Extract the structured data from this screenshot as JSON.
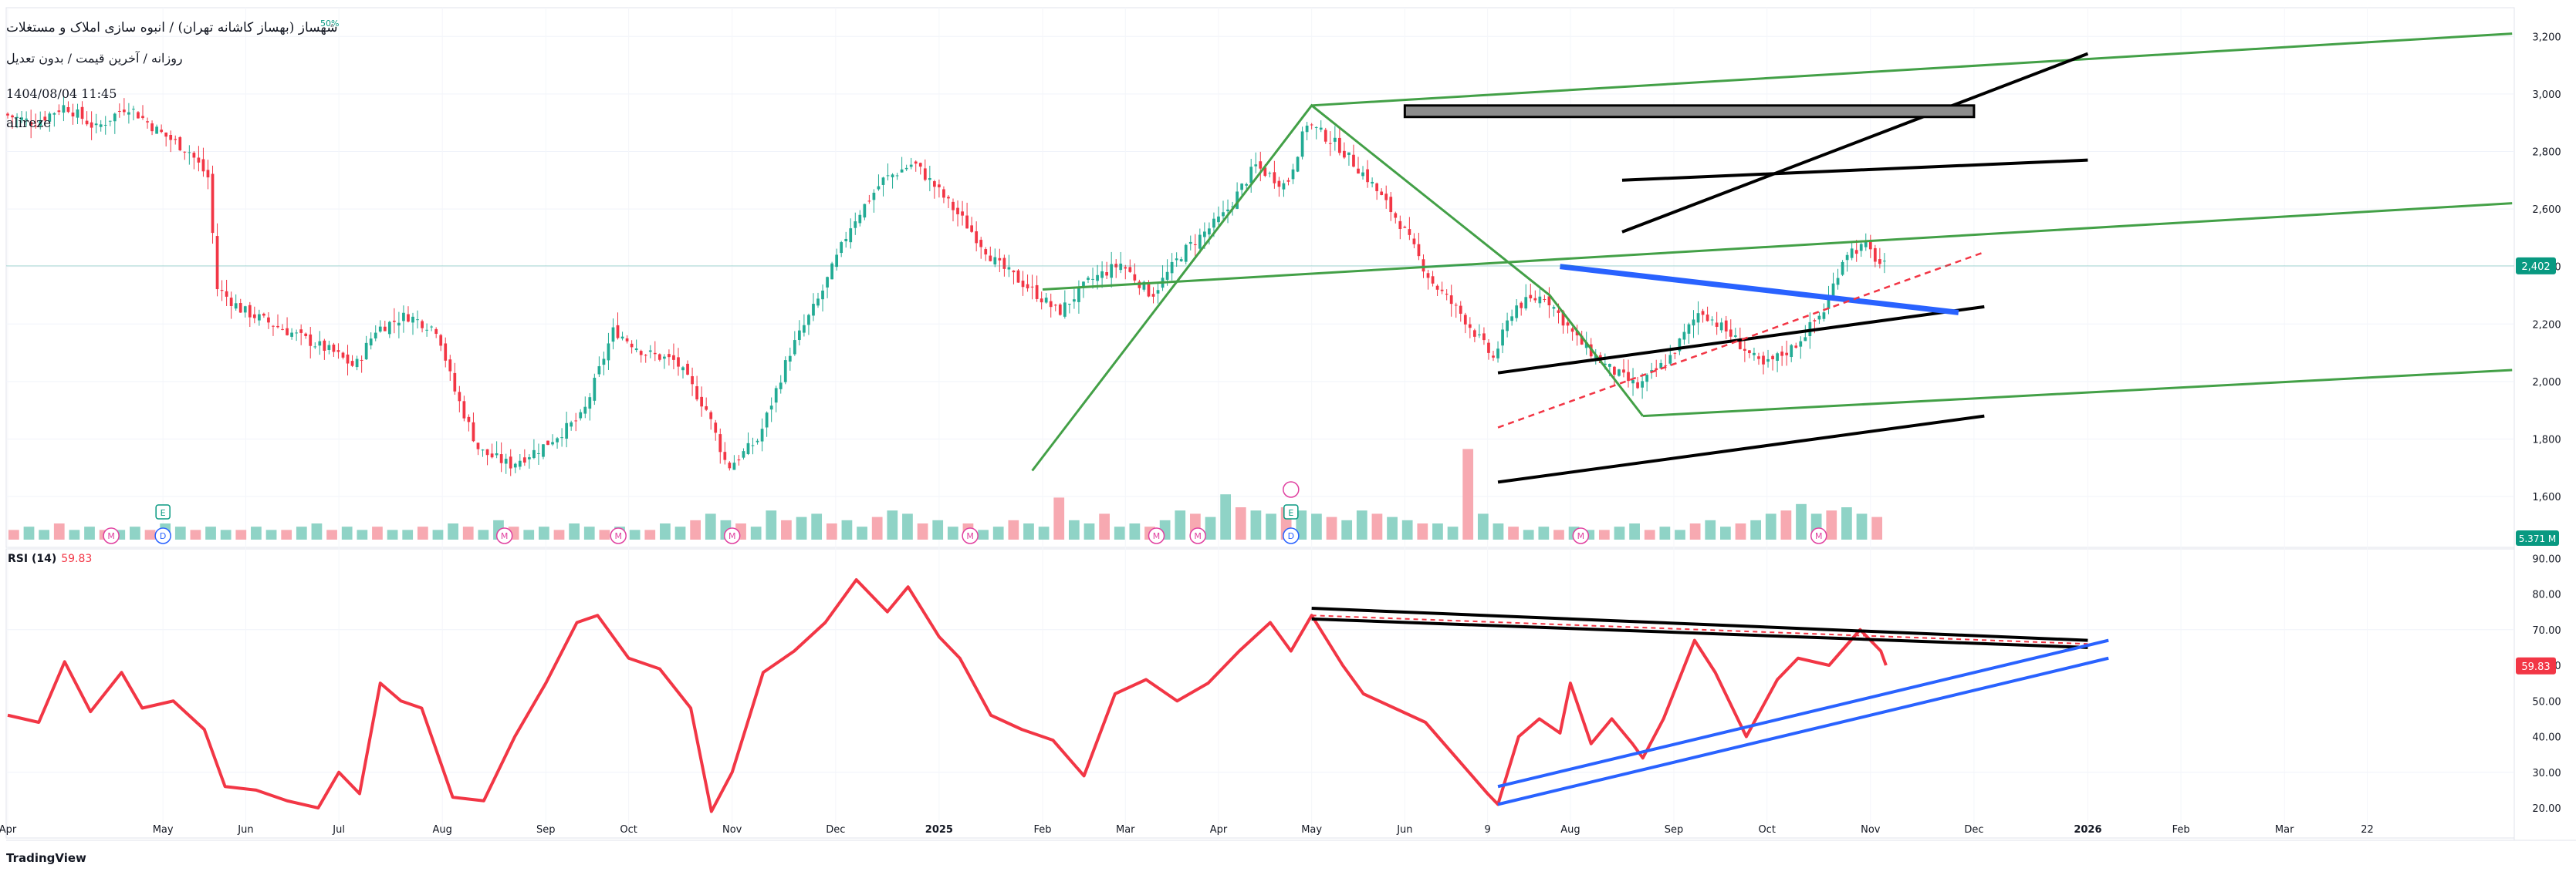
{
  "header": {
    "title": "شهساز (بهساز کاشانه تهران) / انبوه سازی املاک و مستغلات",
    "subtitle": "روزانه / آخرین قیمت / بدون تعدیل",
    "datetime": "1404/08/04 11:45",
    "author": "alireze",
    "percent_badge": "50%"
  },
  "footer": {
    "brand": "TradingView"
  },
  "colors": {
    "up": "#22ab94",
    "down": "#f23645",
    "green_line": "#43a047",
    "blue_line": "#2962ff",
    "rsi_line": "#f23645",
    "price_tag": "#089981"
  },
  "chart_data": [
    {
      "type": "candlestick",
      "title": "شهساز (بهساز کاشانه تهران) / انبوه سازی املاک و مستغلات",
      "y_axis_ticks": [
        1600,
        1800,
        2000,
        2200,
        2400,
        2600,
        2800,
        3000,
        3200
      ],
      "y_range": [
        1450,
        3300
      ],
      "last_price": "2,402",
      "volume_label": "5.371 M",
      "x_axis_labels": [
        "Apr",
        "May",
        "Jun",
        "Jul",
        "Aug",
        "Sep",
        "Oct",
        "Nov",
        "Dec",
        "2025",
        "Feb",
        "Mar",
        "Apr",
        "May",
        "Jun",
        "9",
        "Aug",
        "Sep",
        "Oct",
        "Nov",
        "Dec",
        "2026",
        "Feb",
        "Mar",
        "22"
      ],
      "x_axis_months": [
        0,
        1.5,
        2.3,
        3.2,
        4.2,
        5.2,
        6.0,
        7.0,
        8.0,
        9.0,
        10.0,
        10.8,
        11.7,
        12.6,
        13.5,
        14.3,
        15.1,
        16.1,
        17.0,
        18.0,
        19.0,
        20.1,
        21.0,
        22.0,
        22.8
      ],
      "price_path": [
        [
          0,
          2930
        ],
        [
          0.3,
          2900
        ],
        [
          0.6,
          2960
        ],
        [
          0.9,
          2880
        ],
        [
          1.2,
          2960
        ],
        [
          1.5,
          2870
        ],
        [
          1.8,
          2800
        ],
        [
          2.0,
          2700
        ],
        [
          2.05,
          2330
        ],
        [
          2.3,
          2250
        ],
        [
          2.6,
          2200
        ],
        [
          2.9,
          2150
        ],
        [
          3.2,
          2100
        ],
        [
          3.4,
          2050
        ],
        [
          3.6,
          2180
        ],
        [
          3.9,
          2230
        ],
        [
          4.2,
          2180
        ],
        [
          4.35,
          1980
        ],
        [
          4.6,
          1760
        ],
        [
          4.9,
          1710
        ],
        [
          5.2,
          1770
        ],
        [
          5.6,
          1880
        ],
        [
          5.9,
          2180
        ],
        [
          6.2,
          2100
        ],
        [
          6.5,
          2070
        ],
        [
          6.8,
          1900
        ],
        [
          7.0,
          1700
        ],
        [
          7.3,
          1800
        ],
        [
          7.6,
          2100
        ],
        [
          7.9,
          2300
        ],
        [
          8.2,
          2550
        ],
        [
          8.5,
          2700
        ],
        [
          8.8,
          2760
        ],
        [
          9.0,
          2680
        ],
        [
          9.3,
          2550
        ],
        [
          9.6,
          2410
        ],
        [
          9.9,
          2330
        ],
        [
          10.2,
          2240
        ],
        [
          10.5,
          2350
        ],
        [
          10.8,
          2410
        ],
        [
          11.1,
          2300
        ],
        [
          11.4,
          2450
        ],
        [
          11.8,
          2580
        ],
        [
          12.1,
          2750
        ],
        [
          12.4,
          2680
        ],
        [
          12.6,
          2900
        ],
        [
          12.9,
          2820
        ],
        [
          13.2,
          2700
        ],
        [
          13.5,
          2550
        ],
        [
          13.8,
          2350
        ],
        [
          14.1,
          2230
        ],
        [
          14.4,
          2080
        ],
        [
          14.6,
          2260
        ],
        [
          14.9,
          2300
        ],
        [
          15.2,
          2150
        ],
        [
          15.5,
          2050
        ],
        [
          15.8,
          1980
        ],
        [
          16.1,
          2080
        ],
        [
          16.4,
          2250
        ],
        [
          16.7,
          2160
        ],
        [
          17.0,
          2050
        ],
        [
          17.3,
          2120
        ],
        [
          17.6,
          2250
        ],
        [
          17.8,
          2450
        ],
        [
          18.0,
          2470
        ],
        [
          18.15,
          2402
        ]
      ],
      "volume_bars": [
        3,
        4,
        3,
        5,
        3,
        4,
        3,
        3,
        4,
        3,
        5,
        4,
        3,
        4,
        3,
        3,
        4,
        3,
        3,
        4,
        5,
        3,
        4,
        3,
        4,
        3,
        3,
        4,
        3,
        5,
        4,
        3,
        6,
        4,
        3,
        4,
        3,
        5,
        4,
        3,
        4,
        3,
        3,
        5,
        4,
        6,
        8,
        6,
        5,
        4,
        9,
        6,
        7,
        8,
        5,
        6,
        4,
        7,
        9,
        8,
        5,
        6,
        4,
        5,
        3,
        4,
        6,
        5,
        4,
        13,
        6,
        5,
        8,
        4,
        5,
        4,
        6,
        9,
        8,
        7,
        14,
        10,
        9,
        8,
        10,
        9,
        8,
        7,
        6,
        9,
        8,
        7,
        6,
        5,
        5,
        4,
        28,
        8,
        5,
        4,
        3,
        4,
        3,
        4,
        3,
        3,
        4,
        5,
        3,
        4,
        3,
        5,
        6,
        4,
        5,
        6,
        8,
        9,
        11,
        8,
        9,
        10,
        8,
        7
      ],
      "event_markers": [
        "M",
        "D",
        "E",
        "M",
        "M",
        "M",
        "M",
        "M",
        "M",
        "D",
        "E",
        "M",
        "M"
      ],
      "drawings": {
        "green_lines": [
          [
            [
              9.9,
              1690
            ],
            [
              12.6,
              2960
            ],
            [
              14.9,
              2300
            ],
            [
              15.8,
              1880
            ]
          ],
          [
            [
              10.0,
              2320
            ],
            [
              24.2,
              2620
            ]
          ],
          [
            [
              12.6,
              2960
            ],
            [
              24.2,
              3210
            ]
          ],
          [
            [
              15.8,
              1880
            ],
            [
              24.2,
              2040
            ]
          ]
        ],
        "black_channel": [
          [
            [
              14.4,
              2030
            ],
            [
              19.1,
              2260
            ]
          ],
          [
            [
              14.4,
              1650
            ],
            [
              19.1,
              1880
            ]
          ],
          [
            [
              15.6,
              2520
            ],
            [
              20.1,
              3140
            ]
          ],
          [
            [
              15.6,
              2700
            ],
            [
              20.1,
              2770
            ]
          ]
        ],
        "blue_line": [
          [
            15.0,
            2400
          ],
          [
            18.85,
            2240
          ]
        ],
        "red_dashed": [
          [
            14.4,
            1840
          ],
          [
            19.1,
            2450
          ]
        ],
        "gray_box": [
          [
            13.5,
            2920
          ],
          [
            19.0,
            2960
          ]
        ]
      }
    },
    {
      "type": "line",
      "title": "RSI (14)",
      "value_label": "59.83",
      "y_axis_ticks": [
        "20.00",
        "30.00",
        "40.00",
        "50.00",
        "60.00",
        "70.00",
        "80.00",
        "90.00"
      ],
      "y_range": [
        12,
        92
      ],
      "rsi_path": [
        [
          0,
          46
        ],
        [
          0.3,
          44
        ],
        [
          0.55,
          61
        ],
        [
          0.8,
          47
        ],
        [
          1.1,
          58
        ],
        [
          1.3,
          48
        ],
        [
          1.6,
          50
        ],
        [
          1.9,
          42
        ],
        [
          2.1,
          26
        ],
        [
          2.4,
          25
        ],
        [
          2.7,
          22
        ],
        [
          3.0,
          20
        ],
        [
          3.2,
          30
        ],
        [
          3.4,
          24
        ],
        [
          3.6,
          55
        ],
        [
          3.8,
          50
        ],
        [
          4.0,
          48
        ],
        [
          4.3,
          23
        ],
        [
          4.6,
          22
        ],
        [
          4.9,
          40
        ],
        [
          5.2,
          55
        ],
        [
          5.5,
          72
        ],
        [
          5.7,
          74
        ],
        [
          6.0,
          62
        ],
        [
          6.3,
          59
        ],
        [
          6.6,
          48
        ],
        [
          6.8,
          19
        ],
        [
          7.0,
          30
        ],
        [
          7.3,
          58
        ],
        [
          7.6,
          64
        ],
        [
          7.9,
          72
        ],
        [
          8.2,
          84
        ],
        [
          8.5,
          75
        ],
        [
          8.7,
          82
        ],
        [
          9.0,
          68
        ],
        [
          9.2,
          62
        ],
        [
          9.5,
          46
        ],
        [
          9.8,
          42
        ],
        [
          10.1,
          39
        ],
        [
          10.4,
          29
        ],
        [
          10.7,
          52
        ],
        [
          11.0,
          56
        ],
        [
          11.3,
          50
        ],
        [
          11.6,
          55
        ],
        [
          11.9,
          64
        ],
        [
          12.2,
          72
        ],
        [
          12.4,
          64
        ],
        [
          12.6,
          74
        ],
        [
          12.9,
          60
        ],
        [
          13.1,
          52
        ],
        [
          13.4,
          48
        ],
        [
          13.7,
          44
        ],
        [
          14.0,
          34
        ],
        [
          14.3,
          24
        ],
        [
          14.4,
          21
        ],
        [
          14.6,
          40
        ],
        [
          14.8,
          45
        ],
        [
          15.0,
          41
        ],
        [
          15.1,
          55
        ],
        [
          15.3,
          38
        ],
        [
          15.5,
          45
        ],
        [
          15.7,
          38
        ],
        [
          15.8,
          34
        ],
        [
          16.0,
          45
        ],
        [
          16.3,
          67
        ],
        [
          16.5,
          58
        ],
        [
          16.8,
          40
        ],
        [
          17.1,
          56
        ],
        [
          17.3,
          62
        ],
        [
          17.6,
          60
        ],
        [
          17.9,
          70
        ],
        [
          18.1,
          64
        ],
        [
          18.15,
          60
        ]
      ],
      "drawings": {
        "black_lines": [
          [
            [
              12.6,
              76
            ],
            [
              20.1,
              67
            ]
          ],
          [
            [
              12.6,
              73
            ],
            [
              20.1,
              65
            ]
          ]
        ],
        "red_dashed": [
          [
            12.6,
            74
          ],
          [
            20.1,
            66
          ]
        ],
        "blue_lines": [
          [
            [
              14.4,
              21
            ],
            [
              20.3,
              62
            ]
          ],
          [
            [
              14.4,
              26
            ],
            [
              20.3,
              67
            ]
          ]
        ]
      }
    }
  ]
}
